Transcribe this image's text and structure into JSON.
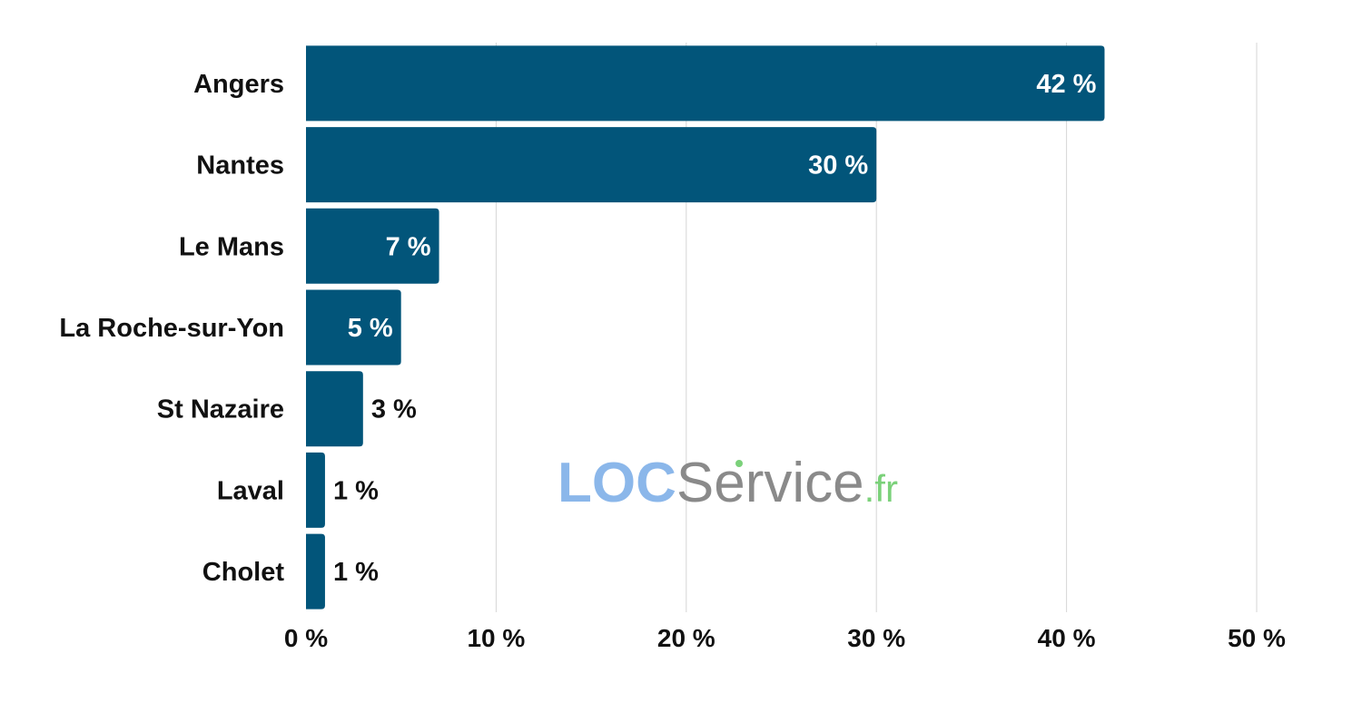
{
  "chart_data": {
    "type": "bar",
    "orientation": "horizontal",
    "categories": [
      "Angers",
      "Nantes",
      "Le Mans",
      "La Roche-sur-Yon",
      "St Nazaire",
      "Laval",
      "Cholet"
    ],
    "values": [
      42,
      30,
      7,
      5,
      3,
      1,
      1
    ],
    "value_labels": [
      "42 %",
      "30 %",
      "7 %",
      "5 %",
      "3 %",
      "1 %",
      "1 %"
    ],
    "title": "",
    "xlabel": "",
    "ylabel": "",
    "xlim": [
      0,
      50
    ],
    "x_ticks": [
      0,
      10,
      20,
      30,
      40,
      50
    ],
    "x_tick_labels": [
      "0 %",
      "10 %",
      "20 %",
      "30 %",
      "40 %",
      "50 %"
    ],
    "grid": "vertical",
    "legend": "none",
    "colors": {
      "bar": "#02557a",
      "grid": "#d6d6d6",
      "text": "#111111",
      "label_inside": "#ffffff"
    }
  },
  "watermark": {
    "part1": "LOC",
    "part2": "Service",
    "part3": ".fr",
    "colors": {
      "part1": "#8bb7ea",
      "part2": "#8a8a8a",
      "part3": "#7bd17a"
    }
  }
}
